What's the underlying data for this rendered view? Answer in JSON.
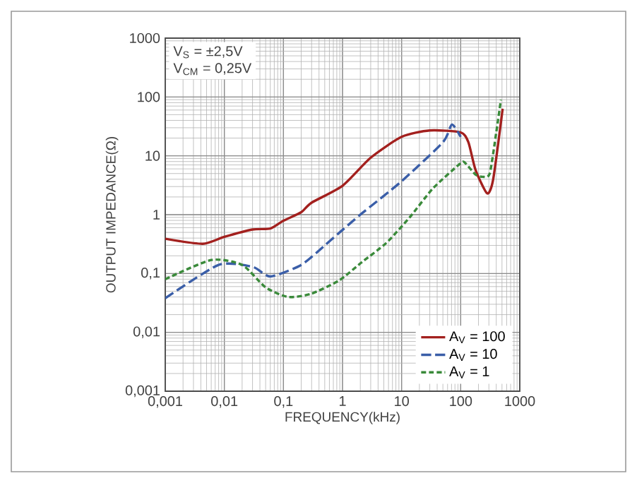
{
  "chart_data": {
    "type": "line",
    "xlabel": "FREQUENCY(kHz)",
    "ylabel": "OUTPUT IMPEDANCE(Ω)",
    "log": "xy",
    "grid": true,
    "legend": "bottom right",
    "marker": "none",
    "xlim": [
      0.001,
      1000
    ],
    "ylim": [
      0.001,
      1000
    ],
    "xticks": [
      {
        "value": 0.001,
        "label": "0,001"
      },
      {
        "value": 0.01,
        "label": "0,01"
      },
      {
        "value": 0.1,
        "label": "0,1"
      },
      1,
      10,
      100,
      1000
    ],
    "yticks": [
      {
        "value": 0.001,
        "label": "0,001"
      },
      {
        "value": 0.01,
        "label": "0,01"
      },
      {
        "value": 0.1,
        "label": "0,1"
      },
      1,
      10,
      100,
      1000
    ],
    "annotations": [
      "V$_{S}$ = ±2,5V",
      "V$_{CM}$ = 0,25V"
    ],
    "series": [
      {
        "name": "A$_{V}$ = 100",
        "color": "#a3201e",
        "line_style": "solid",
        "x": [
          0.001,
          0.0043,
          0.01,
          0.03,
          0.06,
          0.1,
          0.2,
          0.3,
          1,
          3,
          10,
          30,
          100,
          135,
          178,
          280,
          355,
          513
        ],
        "values": [
          0.39,
          0.32,
          0.42,
          0.56,
          0.58,
          0.79,
          1.1,
          1.6,
          3.1,
          9.3,
          21,
          27,
          25,
          17,
          5.8,
          2.3,
          4,
          63
        ]
      },
      {
        "name": "A$_{V}$ = 10",
        "color": "#3a5ea8",
        "line_style": "dashed",
        "x": [
          0.001,
          0.008,
          0.03,
          0.06,
          0.2,
          0.5,
          1,
          2,
          10,
          50,
          71,
          100
        ],
        "values": [
          0.038,
          0.14,
          0.13,
          0.089,
          0.14,
          0.3,
          0.55,
          1.0,
          3.7,
          17,
          34,
          21
        ]
      },
      {
        "name": "A$_{V}$ = 1",
        "color": "#3a8a3a",
        "line_style": "dotted",
        "x": [
          0.001,
          0.006,
          0.02,
          0.05,
          0.12,
          0.29,
          0.87,
          2.2,
          5.5,
          13.7,
          34,
          100,
          120,
          178,
          236,
          310,
          400,
          480
        ],
        "values": [
          0.08,
          0.17,
          0.14,
          0.058,
          0.04,
          0.045,
          0.076,
          0.16,
          0.33,
          0.9,
          2.8,
          7.5,
          7.5,
          4.8,
          4.4,
          5,
          25,
          90
        ]
      }
    ]
  }
}
